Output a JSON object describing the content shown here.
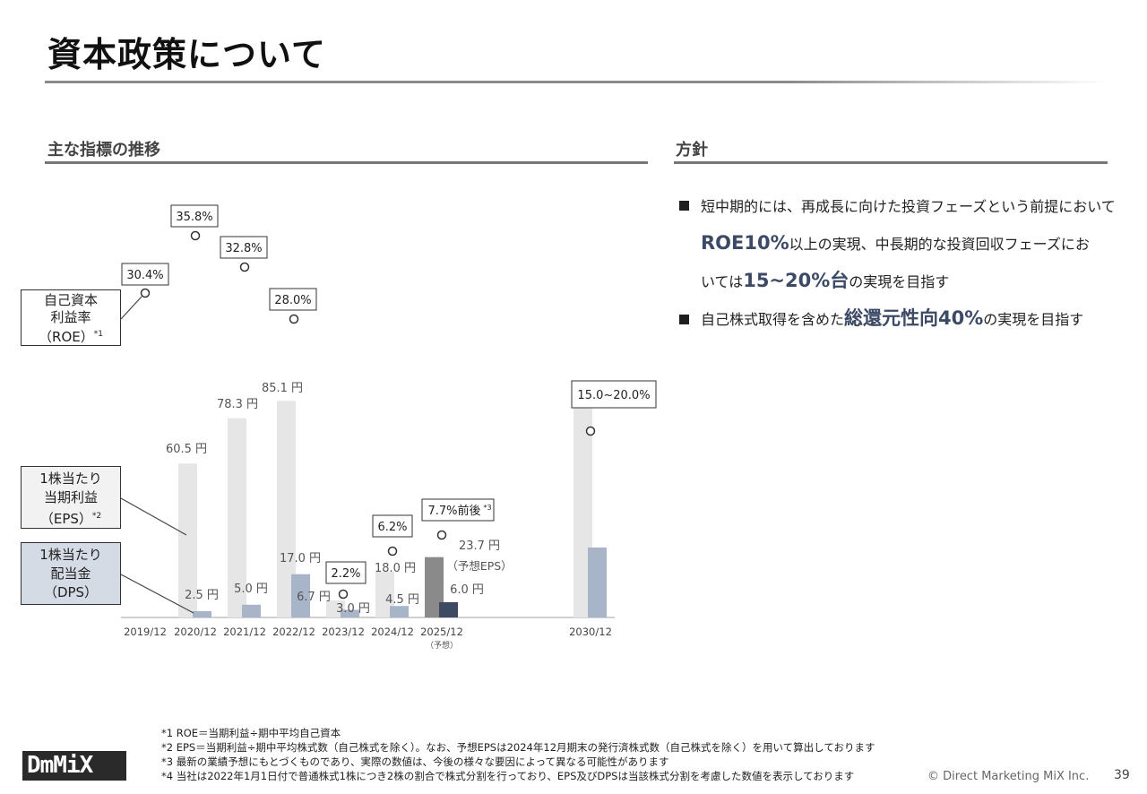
{
  "title": "資本政策について",
  "left_section": "主な指標の推移",
  "right_section": "方針",
  "labels": {
    "roe": [
      "自己資本",
      "利益率",
      "（ROE）"
    ],
    "roe_note": "*1",
    "eps": [
      "1株当たり",
      "当期利益",
      "（EPS）"
    ],
    "eps_note": "*2",
    "dps": [
      "1株当たり",
      "配当金",
      "（DPS）"
    ]
  },
  "chart_data": {
    "type": "bar",
    "categories": [
      "2019/12",
      "2020/12",
      "2021/12",
      "2022/12",
      "2023/12",
      "2024/12",
      "2025/12",
      "2030/12"
    ],
    "category_subtitles": [
      "",
      "",
      "",
      "",
      "",
      "",
      "（予想）",
      ""
    ],
    "series": [
      {
        "name": "EPS",
        "values": [
          null,
          60.5,
          78.3,
          85.1,
          6.7,
          18.0,
          23.7,
          85.1
        ],
        "labels": [
          "",
          "60.5 円",
          "78.3 円",
          "85.1 円",
          "6.7 円",
          "18.0 円",
          "23.7 円",
          ""
        ],
        "forecast_note": "（予想EPS）"
      },
      {
        "name": "DPS",
        "values": [
          null,
          2.5,
          5.0,
          17.0,
          3.0,
          4.5,
          6.0,
          27.5
        ],
        "labels": [
          "",
          "2.5 円",
          "5.0 円",
          "17.0 円",
          "3.0 円",
          "4.5 円",
          "6.0 円",
          ""
        ]
      },
      {
        "name": "ROE",
        "values": [
          30.4,
          35.8,
          32.8,
          28.0,
          2.2,
          6.2,
          7.7,
          17.5
        ],
        "labels": [
          "30.4%",
          "35.8%",
          "32.8%",
          "28.0%",
          "2.2%",
          "6.2%",
          "7.7%前後",
          "15.0~20.0%"
        ],
        "label_notes": [
          "",
          "",
          "",
          "",
          "",
          "",
          "*3",
          ""
        ]
      }
    ],
    "colors": {
      "eps": "#e6e6e6",
      "dps": "#a8b4c8",
      "eps_forecast": "#8a8a8a",
      "dps_forecast": "#3e4a63"
    }
  },
  "policy": {
    "item1": {
      "a": "短中期的には、再成長に向けた投資フェーズという前提において",
      "b": "ROE10%",
      "c": "以上の実現、中長期的な投資回収フェーズにお",
      "d": "いては",
      "e": "15~20%台",
      "f": "の実現を目指す"
    },
    "item2": {
      "a": "自己株式取得を含めた",
      "b": "総還元性向40%",
      "c": "の実現を目指す"
    }
  },
  "notes": [
    "*1 ROE＝当期利益÷期中平均自己資本",
    "*2 EPS＝当期利益÷期中平均株式数（自己株式を除く）。なお、予想EPSは2024年12月期末の発行済株式数（自己株式を除く）を用いて算出しております",
    "*3 最新の業績予想にもとづくものであり、実際の数値は、今後の様々な要因によって異なる可能性があります",
    "*4 当社は2022年1月1日付で普通株式1株につき2株の割合で株式分割を行っており、EPS及びDPSは当該株式分割を考慮した数値を表示しております"
  ],
  "logo": "DmMiX",
  "copyright": "© Direct Marketing MiX Inc.",
  "page_number": "39"
}
